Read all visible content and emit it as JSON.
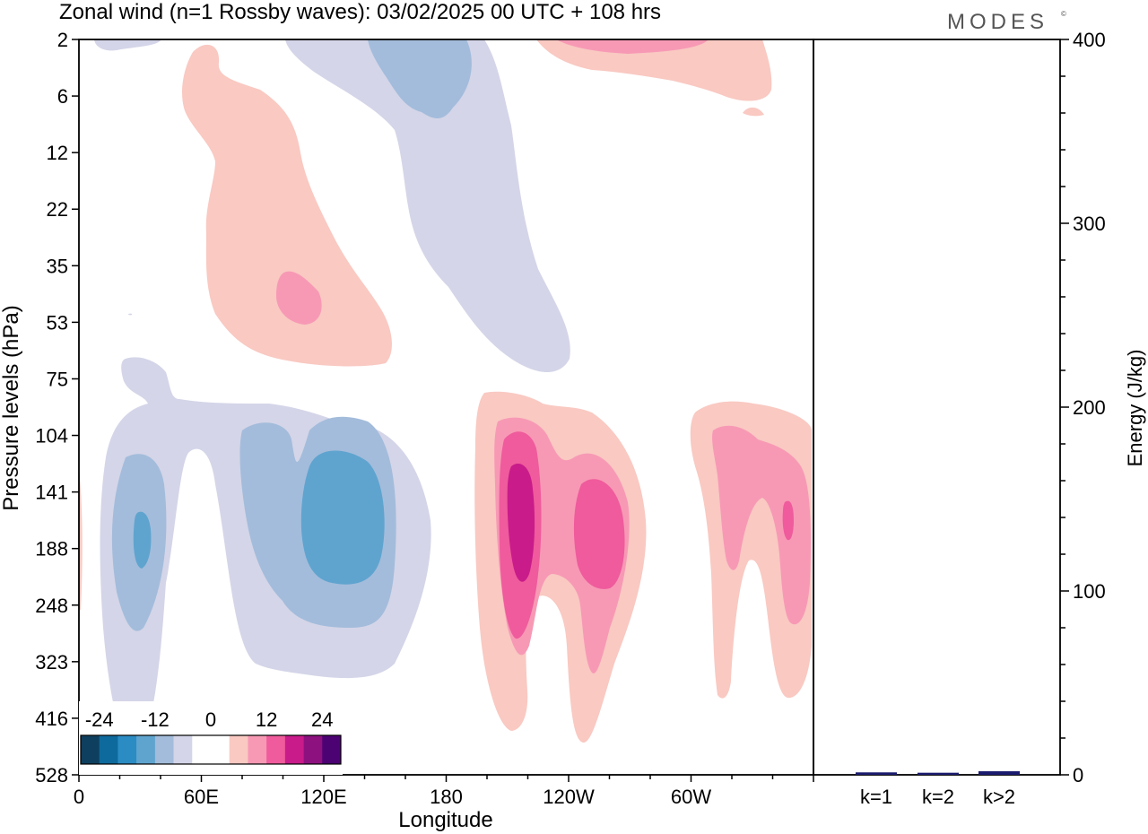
{
  "title": "Zonal wind (n=1 Rossby waves):  03/02/2025  00 UTC  + 108 hrs",
  "logo_text": "MODES",
  "colors": {
    "negative": [
      "#0f3f5e",
      "#0e6a9c",
      "#2b8cc4",
      "#5fa4cf",
      "#a3bcdb",
      "#d4d5e8"
    ],
    "positive": [
      "#f9c9c2",
      "#f799b5",
      "#ef5b9c",
      "#c91b8a",
      "#8e1180",
      "#4c0273"
    ],
    "zero": "#ffffff"
  },
  "chart_data": [
    {
      "type": "heatmap",
      "xlabel": "Longitude",
      "ylabel": "Pressure levels (hPa)",
      "x_ticks": [
        "0",
        "60E",
        "120E",
        "180",
        "120W",
        "60W"
      ],
      "x_range_deg": [
        0,
        360
      ],
      "y_ticks": [
        "2",
        "6",
        "12",
        "22",
        "35",
        "53",
        "75",
        "104",
        "141",
        "188",
        "248",
        "323",
        "416",
        "528"
      ],
      "colorbar": {
        "tick_labels": [
          "-24",
          "-12",
          "0",
          "12",
          "24"
        ],
        "levels": [
          -30,
          -25,
          -20,
          -15,
          -10,
          -5,
          0,
          5,
          10,
          15,
          20,
          25,
          30
        ]
      },
      "features": [
        {
          "lon": 30,
          "level": "188",
          "value": -14
        },
        {
          "lon": 120,
          "level": "188",
          "value": -12
        },
        {
          "lon": 40,
          "level": "75",
          "value": -4
        },
        {
          "lon": 180,
          "level": "22",
          "value": -4
        },
        {
          "lon": 150,
          "level": "6",
          "value": -8
        },
        {
          "lon": 110,
          "level": "53",
          "value": 8
        },
        {
          "lon": 65,
          "level": "35",
          "value": 4
        },
        {
          "lon": 215,
          "level": "188",
          "value": 20
        },
        {
          "lon": 255,
          "level": "188",
          "value": 16
        },
        {
          "lon": 340,
          "level": "188",
          "value": 14
        },
        {
          "lon": 280,
          "level": "2",
          "value": 6
        }
      ]
    },
    {
      "type": "bar",
      "ylabel": "Energy (J/kg)",
      "categories": [
        "k=1",
        "k=2",
        "k>2"
      ],
      "values": [
        0.6,
        0.4,
        1.2
      ],
      "ylim": [
        0,
        400
      ],
      "y_ticks": [
        "0",
        "100",
        "200",
        "300",
        "400"
      ],
      "bar_color": "#1a1a6e"
    }
  ]
}
